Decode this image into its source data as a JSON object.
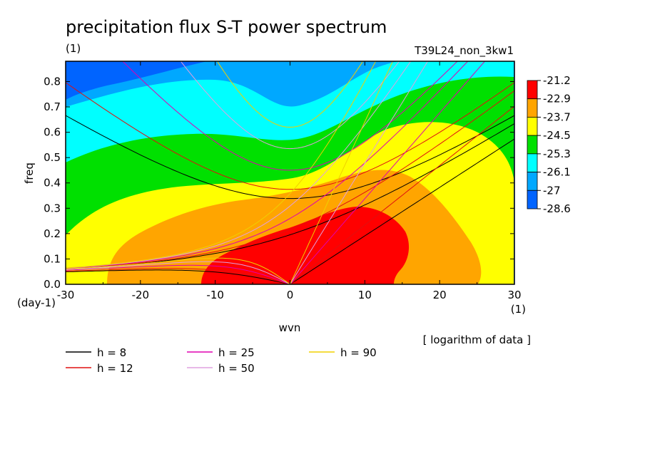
{
  "chart_data": {
    "type": "heatmap",
    "title": "precipitation flux S-T power spectrum",
    "unit_label": "(1)",
    "run_label": "T39L24_non_3kw1",
    "xlabel": "wvn",
    "ylabel": "freq",
    "y_unit": "(day-1)",
    "x_unit": "(1)",
    "note": "[ logarithm of data ]",
    "xlim": [
      -30,
      30
    ],
    "ylim": [
      0,
      0.88
    ],
    "xticks": [
      -30,
      -20,
      -10,
      0,
      10,
      20,
      30
    ],
    "yticks": [
      0.0,
      0.1,
      0.2,
      0.3,
      0.4,
      0.5,
      0.6,
      0.7,
      0.8
    ],
    "colorbar": {
      "levels": [
        -21.2,
        -22.9,
        -23.7,
        -24.5,
        -25.3,
        -26.1,
        -27,
        -28.6
      ],
      "colors": [
        "#ff0000",
        "#ffa500",
        "#ffff00",
        "#00e000",
        "#00ffff",
        "#00a8ff",
        "#0064ff"
      ]
    },
    "dispersion_curves": [
      {
        "name": "h =  8",
        "color": "#000000"
      },
      {
        "name": "h = 12",
        "color": "#e01010"
      },
      {
        "name": "h = 25",
        "color": "#e000b0"
      },
      {
        "name": "h = 50",
        "color": "#e0a0e0"
      },
      {
        "name": "h = 90",
        "color": "#f0d000"
      }
    ],
    "legend_labels": [
      "h =  8",
      "h = 12",
      "h = 25",
      "h = 50",
      "h = 90"
    ]
  }
}
